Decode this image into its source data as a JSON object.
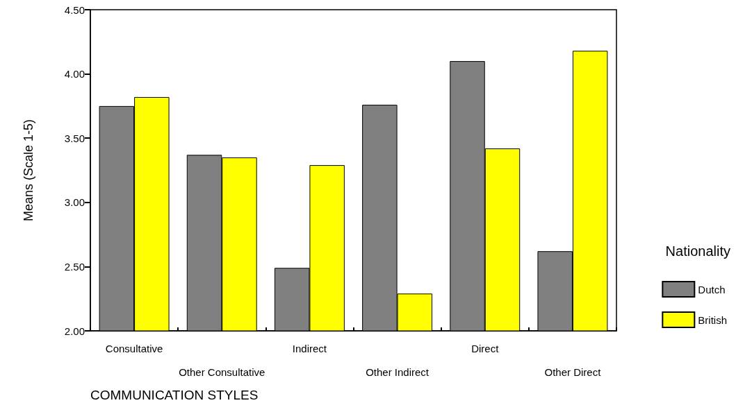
{
  "chart_data": {
    "type": "bar",
    "xlabel": "COMMUNICATION STYLES",
    "ylabel": "Means (Scale 1-5)",
    "legend_title": "Nationality",
    "categories": [
      "Consultative",
      "Other Consultative",
      "Indirect",
      "Other Indirect",
      "Direct",
      "Other Direct"
    ],
    "series": [
      {
        "name": "Dutch",
        "color": "#808080",
        "values": [
          3.75,
          3.37,
          2.49,
          3.76,
          4.1,
          2.62
        ]
      },
      {
        "name": "British",
        "color": "#ffff00",
        "values": [
          3.82,
          3.35,
          3.29,
          2.29,
          3.42,
          4.18
        ]
      }
    ],
    "ylim": [
      2,
      4.5
    ],
    "yticks": [
      {
        "value": 2,
        "label": "2.00"
      },
      {
        "value": 2.5,
        "label": "2.50"
      },
      {
        "value": 3,
        "label": "3.00"
      },
      {
        "value": 3.5,
        "label": "3.50"
      },
      {
        "value": 4,
        "label": "4.00"
      },
      {
        "value": 4.5,
        "label": "4.50"
      }
    ],
    "grid": false,
    "legend": "right"
  }
}
